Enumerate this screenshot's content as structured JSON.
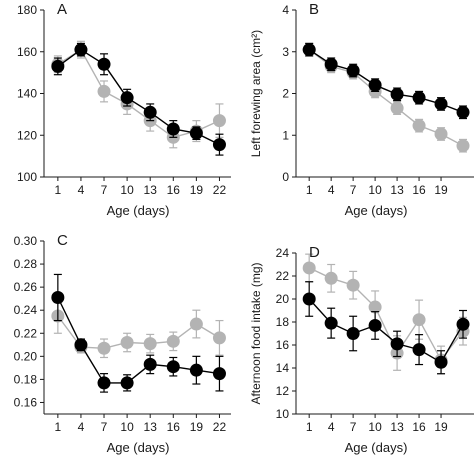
{
  "chart_data": [
    {
      "type": "line",
      "panel_label": "A",
      "xlabel": "Age (days)",
      "ylabel": "",
      "x": [
        1,
        4,
        7,
        10,
        13,
        16,
        19,
        22
      ],
      "xticks": [
        "1",
        "4",
        "7",
        "10",
        "13",
        "16",
        "19",
        "22"
      ],
      "ylim": [
        100,
        180
      ],
      "yticks": [
        "100",
        "120",
        "140",
        "160",
        "180"
      ],
      "series": [
        {
          "color": "#000000",
          "values": [
            153,
            161,
            154,
            138,
            131,
            123,
            121,
            115.5
          ],
          "errors": [
            4,
            3,
            5,
            4,
            4,
            4,
            3,
            5
          ]
        },
        {
          "color": "#b3b3b3",
          "values": [
            154,
            161,
            141,
            135,
            127,
            119,
            122,
            127
          ],
          "errors": [
            4,
            4,
            5,
            5,
            5,
            5,
            5,
            8
          ]
        }
      ]
    },
    {
      "type": "line",
      "panel_label": "B",
      "xlabel": "Age (days)",
      "ylabel": "Left forewing area (cm²)",
      "x": [
        1,
        4,
        7,
        10,
        13,
        16,
        19,
        22
      ],
      "xticks": [
        "1",
        "4",
        "7",
        "10",
        "13",
        "16",
        "19"
      ],
      "ylim": [
        0,
        4
      ],
      "yticks": [
        "0",
        "1",
        "2",
        "3",
        "4"
      ],
      "series": [
        {
          "color": "#000000",
          "values": [
            3.05,
            2.7,
            2.55,
            2.2,
            1.98,
            1.9,
            1.75,
            1.55
          ],
          "errors": [
            0.15,
            0.15,
            0.15,
            0.15,
            0.15,
            0.15,
            0.15,
            0.15
          ]
        },
        {
          "color": "#b3b3b3",
          "values": [
            3.05,
            2.65,
            2.5,
            2.05,
            1.65,
            1.23,
            1.03,
            0.75
          ],
          "errors": [
            0.15,
            0.15,
            0.15,
            0.15,
            0.15,
            0.15,
            0.15,
            0.15
          ]
        }
      ]
    },
    {
      "type": "line",
      "panel_label": "C",
      "xlabel": "Age (days)",
      "ylabel": "",
      "x": [
        1,
        4,
        7,
        10,
        13,
        16,
        19,
        22
      ],
      "xticks": [
        "1",
        "4",
        "7",
        "10",
        "13",
        "16",
        "19",
        "22"
      ],
      "ylim": [
        0.15,
        0.3
      ],
      "yticks": [
        "0.16",
        "0.18",
        "0.20",
        "0.22",
        "0.24",
        "0.26",
        "0.28",
        "0.30"
      ],
      "series": [
        {
          "color": "#000000",
          "values": [
            0.251,
            0.21,
            0.177,
            0.177,
            0.193,
            0.191,
            0.188,
            0.185
          ],
          "errors": [
            0.02,
            0.005,
            0.008,
            0.007,
            0.008,
            0.008,
            0.012,
            0.015
          ]
        },
        {
          "color": "#b3b3b3",
          "values": [
            0.235,
            0.208,
            0.207,
            0.212,
            0.211,
            0.213,
            0.228,
            0.216
          ],
          "errors": [
            0.015,
            0.005,
            0.008,
            0.008,
            0.008,
            0.008,
            0.012,
            0.015
          ]
        }
      ]
    },
    {
      "type": "line",
      "panel_label": "D",
      "xlabel": "Age (days)",
      "ylabel": "Afternoon food intake (mg)",
      "x": [
        1,
        4,
        7,
        10,
        13,
        16,
        19,
        22
      ],
      "xticks": [
        "1",
        "4",
        "7",
        "10",
        "13",
        "16",
        "19"
      ],
      "ylim": [
        10,
        24
      ],
      "yticks": [
        "10",
        "12",
        "14",
        "16",
        "18",
        "20",
        "22",
        "24"
      ],
      "series": [
        {
          "color": "#000000",
          "values": [
            20,
            17.9,
            17,
            17.7,
            16.1,
            15.6,
            14.5,
            17.8
          ],
          "errors": [
            1.5,
            1.3,
            1.5,
            1.2,
            1.1,
            1.3,
            1.0,
            1.2
          ]
        },
        {
          "color": "#b3b3b3",
          "values": [
            22.7,
            21.8,
            21.2,
            19.3,
            15.3,
            18.2,
            14.7,
            17.2
          ],
          "errors": [
            1.2,
            1.2,
            1.2,
            1.4,
            1.5,
            1.7,
            1.2,
            1.2
          ]
        }
      ]
    }
  ]
}
